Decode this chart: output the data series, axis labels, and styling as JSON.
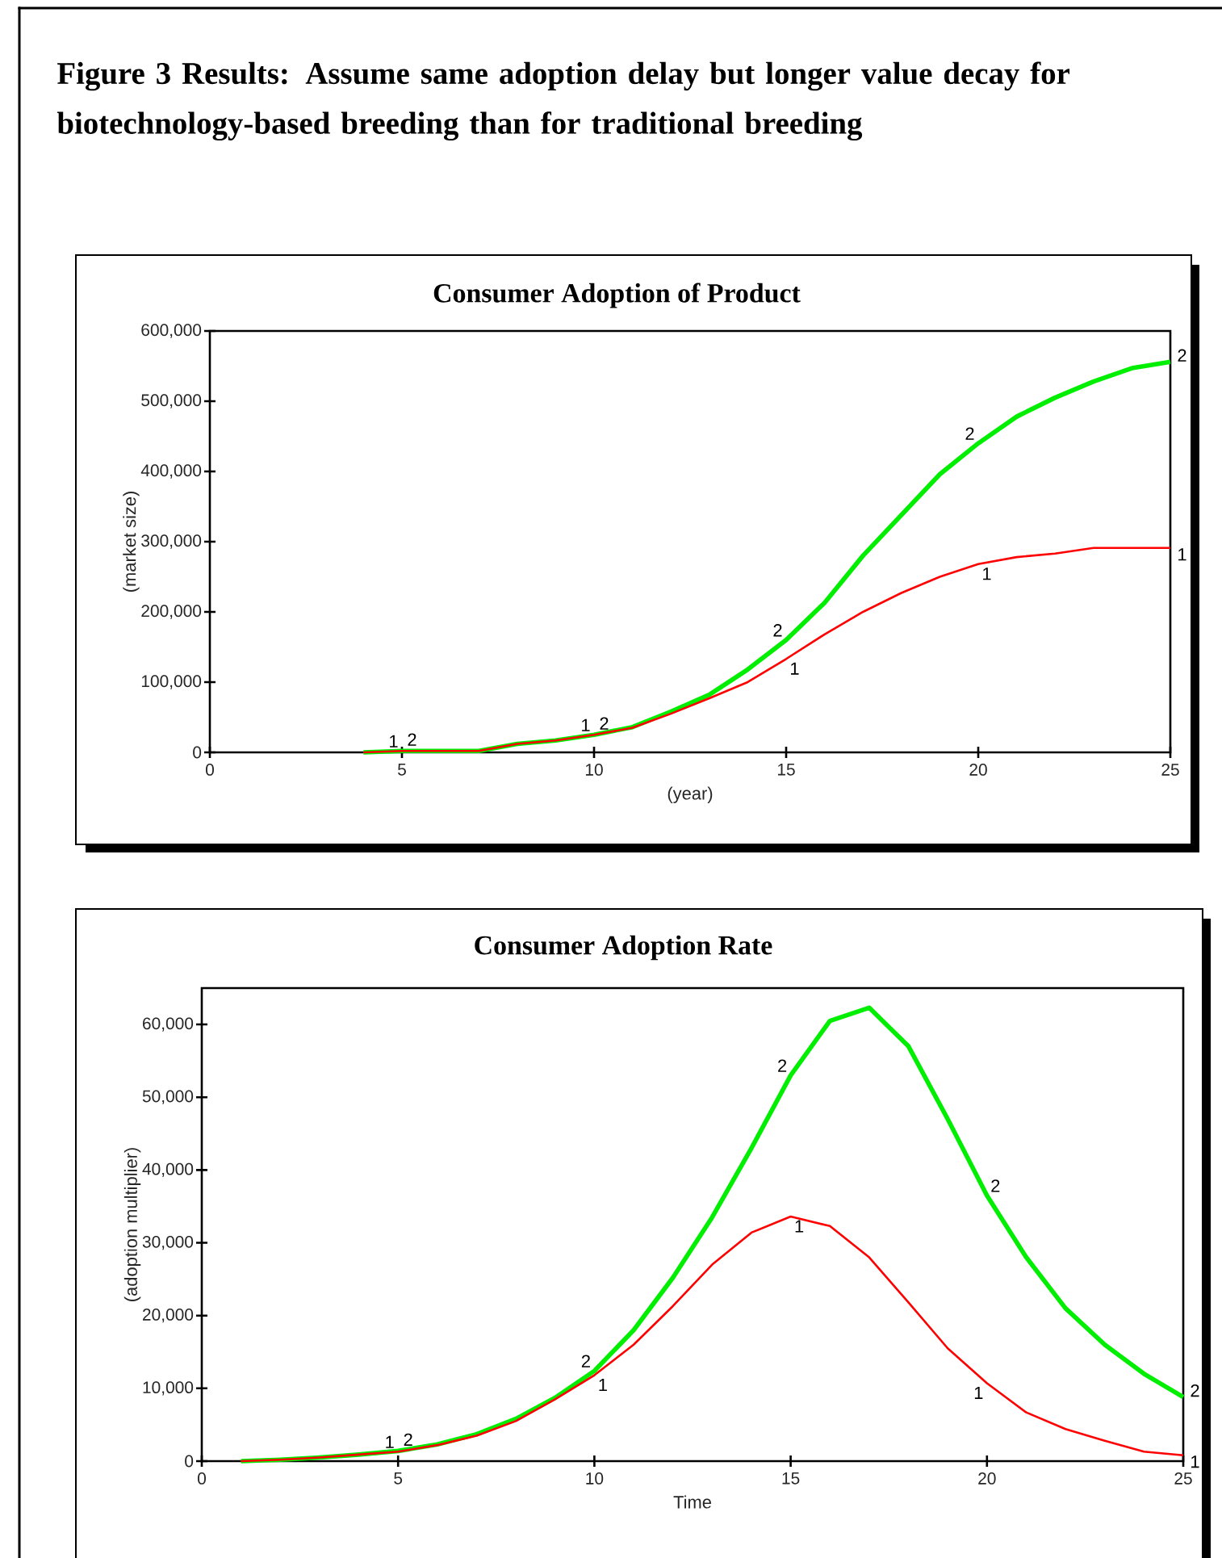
{
  "chart_data": [
    {
      "type": "line",
      "title": "Consumer Adoption of Product",
      "annotations": [
        "Figure 3 Results: Assume same adoption delay but longer value decay for biotechnology-based breeding than for traditional breeding"
      ],
      "xlabel": "(year)",
      "ylabel": "(market size)",
      "x": [
        4,
        5,
        6,
        7,
        8,
        9,
        10,
        11,
        12,
        13,
        14,
        15,
        16,
        17,
        18,
        19,
        20,
        21,
        22,
        23,
        24,
        25
      ],
      "series": [
        {
          "name": "1",
          "color": "#ff0000",
          "values": [
            0,
            2000,
            2000,
            2000,
            12000,
            17000,
            25000,
            35000,
            55000,
            77000,
            100000,
            133000,
            168000,
            200000,
            227000,
            250000,
            268000,
            278000,
            283000,
            291000,
            291000,
            291000
          ]
        },
        {
          "name": "2",
          "color": "#00ee00",
          "values": [
            0,
            2000,
            2000,
            2000,
            12000,
            17000,
            25000,
            36000,
            58000,
            82000,
            118000,
            160000,
            213000,
            280000,
            338000,
            396000,
            440000,
            478000,
            505000,
            528000,
            547000,
            556000
          ]
        }
      ],
      "xlim": [
        0,
        25
      ],
      "xticks": [
        0,
        5,
        10,
        15,
        20,
        25
      ],
      "ylim": [
        0,
        600000
      ],
      "yticks": [
        0,
        {
          "value": 100000,
          "label": "100,000"
        },
        {
          "value": 200000,
          "label": "200,000"
        },
        {
          "value": 300000,
          "label": "300,000"
        },
        {
          "value": 400000,
          "label": "400,000"
        },
        {
          "value": 500000,
          "label": "500,000"
        },
        {
          "value": 600000,
          "label": "600,000"
        }
      ]
    },
    {
      "type": "line",
      "title": "Consumer Adoption Rate",
      "xlabel": "Time",
      "ylabel": "(adoption multiplier)",
      "x": [
        1,
        2,
        3,
        4,
        5,
        6,
        7,
        8,
        9,
        10,
        11,
        12,
        13,
        14,
        15,
        16,
        17,
        18,
        19,
        20,
        21,
        22,
        23,
        24,
        25
      ],
      "series": [
        {
          "name": "1",
          "color": "#ff0000",
          "values": [
            0,
            200,
            500,
            900,
            1300,
            2200,
            3500,
            5500,
            8500,
            11800,
            16000,
            21300,
            27000,
            31400,
            33600,
            32300,
            28000,
            21800,
            15500,
            10700,
            6700,
            4400,
            2800,
            1300,
            800
          ]
        },
        {
          "name": "2",
          "color": "#00ee00",
          "values": [
            0,
            200,
            500,
            900,
            1400,
            2300,
            3700,
            5800,
            8700,
            12400,
            18000,
            25200,
            33500,
            43000,
            53000,
            60500,
            62300,
            57000,
            47000,
            36500,
            28000,
            21000,
            16000,
            12000,
            8800
          ]
        }
      ],
      "xlim": [
        0,
        25
      ],
      "xticks": [
        0,
        5,
        10,
        15,
        20,
        25
      ],
      "ylim": [
        0,
        65000
      ],
      "yticks": [
        0,
        {
          "value": 10000,
          "label": "10,000"
        },
        {
          "value": 20000,
          "label": "20,000"
        },
        {
          "value": 30000,
          "label": "30,000"
        },
        {
          "value": 40000,
          "label": "40,000"
        },
        {
          "value": 50000,
          "label": "50,000"
        },
        {
          "value": 60000,
          "label": "60,000"
        }
      ]
    }
  ]
}
